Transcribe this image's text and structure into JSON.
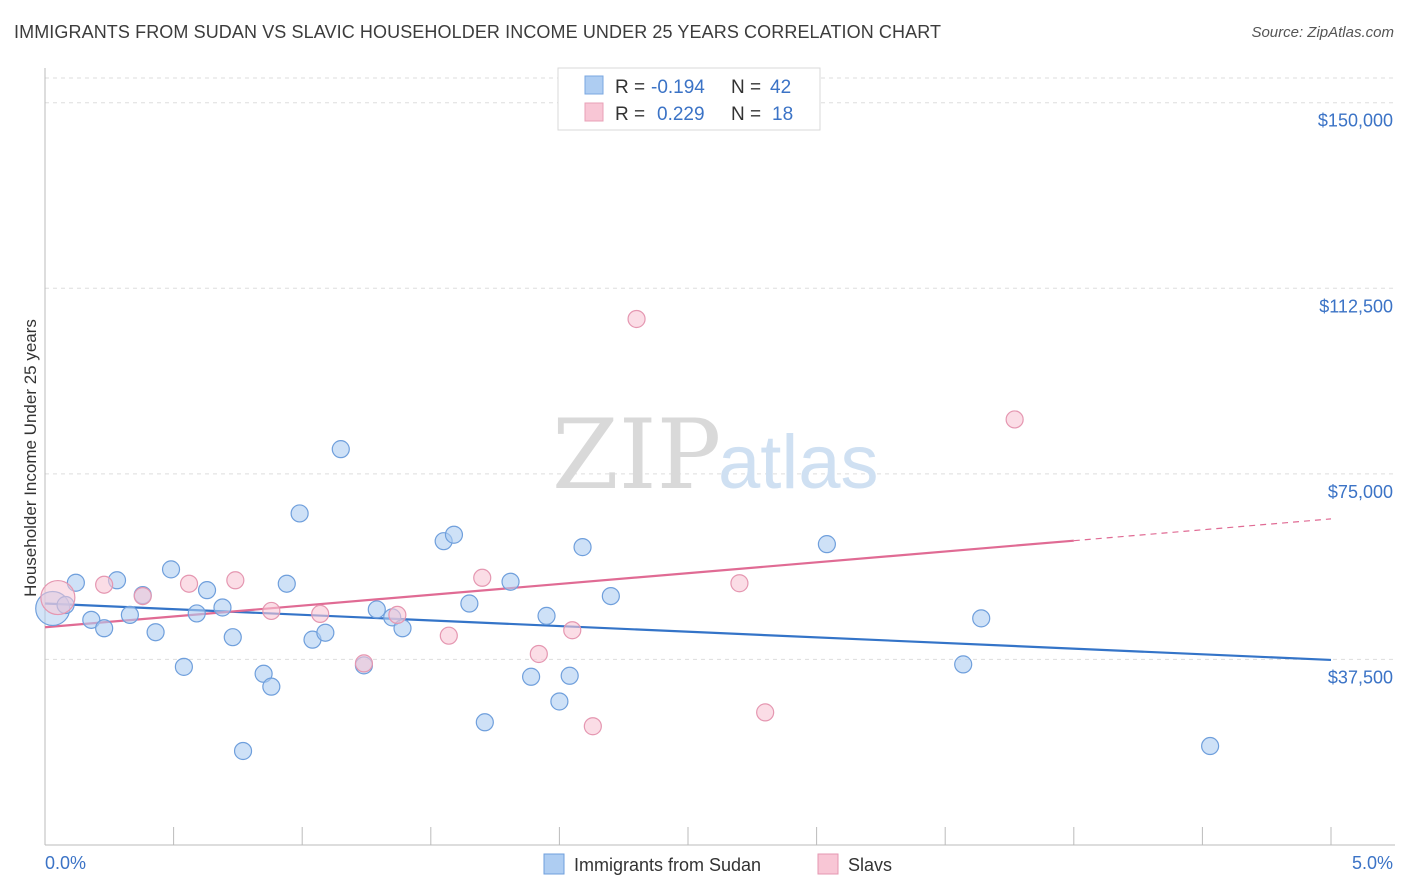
{
  "title": "IMMIGRANTS FROM SUDAN VS SLAVIC HOUSEHOLDER INCOME UNDER 25 YEARS CORRELATION CHART",
  "source": "Source: ZipAtlas.com",
  "watermark": {
    "zip": "ZIP",
    "atlas": "atlas"
  },
  "legend_top": [
    {
      "r_label": "R = ",
      "r_value": "-0.194",
      "n_label": "N = ",
      "n_value": "42",
      "color": "#aecdf2",
      "stroke": "#7aa7e0"
    },
    {
      "r_label": "R = ",
      "r_value": "0.229",
      "n_label": "N = ",
      "n_value": "18",
      "color": "#f8c6d5",
      "stroke": "#e8a0b7"
    }
  ],
  "chart_data": {
    "type": "scatter",
    "title": "IMMIGRANTS FROM SUDAN VS SLAVIC HOUSEHOLDER INCOME UNDER 25 YEARS CORRELATION CHART",
    "xlabel": "",
    "ylabel": "Householder Income Under 25 years",
    "xlim": [
      0,
      5
    ],
    "ylim": [
      0,
      155000
    ],
    "x_tick_labels": [
      "0.0%",
      "5.0%"
    ],
    "y_ticks": [
      37500,
      75000,
      112500,
      150000
    ],
    "y_tick_labels": [
      "$37,500",
      "$75,000",
      "$112,500",
      "$150,000"
    ],
    "grid": true,
    "legend_position": "bottom",
    "series": [
      {
        "name": "Immigrants from Sudan",
        "color": "#aecdf2",
        "stroke": "#6f9fdc",
        "line_color": "#3474c8",
        "trend": {
          "x0": 0,
          "y0": 48800,
          "x1": 5,
          "y1": 37400
        },
        "points": [
          {
            "x": 0.03,
            "y": 47800,
            "big": true
          },
          {
            "x": 0.08,
            "y": 48500
          },
          {
            "x": 0.12,
            "y": 53000
          },
          {
            "x": 0.18,
            "y": 45500
          },
          {
            "x": 0.23,
            "y": 43800
          },
          {
            "x": 0.28,
            "y": 53500
          },
          {
            "x": 0.33,
            "y": 46500
          },
          {
            "x": 0.38,
            "y": 50500
          },
          {
            "x": 0.43,
            "y": 43000
          },
          {
            "x": 0.49,
            "y": 55700
          },
          {
            "x": 0.54,
            "y": 36000
          },
          {
            "x": 0.59,
            "y": 46800
          },
          {
            "x": 0.63,
            "y": 51500
          },
          {
            "x": 0.69,
            "y": 48000
          },
          {
            "x": 0.73,
            "y": 42000
          },
          {
            "x": 0.77,
            "y": 19000
          },
          {
            "x": 0.85,
            "y": 34600
          },
          {
            "x": 0.88,
            "y": 32000
          },
          {
            "x": 0.94,
            "y": 52800
          },
          {
            "x": 0.99,
            "y": 67000
          },
          {
            "x": 1.04,
            "y": 41500
          },
          {
            "x": 1.09,
            "y": 42900
          },
          {
            "x": 1.15,
            "y": 80000
          },
          {
            "x": 1.24,
            "y": 36300
          },
          {
            "x": 1.29,
            "y": 47600
          },
          {
            "x": 1.35,
            "y": 46000
          },
          {
            "x": 1.39,
            "y": 43800
          },
          {
            "x": 1.55,
            "y": 61400
          },
          {
            "x": 1.59,
            "y": 62700
          },
          {
            "x": 1.65,
            "y": 48800
          },
          {
            "x": 1.71,
            "y": 24800
          },
          {
            "x": 1.81,
            "y": 53200
          },
          {
            "x": 1.89,
            "y": 34000
          },
          {
            "x": 1.95,
            "y": 46300
          },
          {
            "x": 2.0,
            "y": 29000
          },
          {
            "x": 2.04,
            "y": 34200
          },
          {
            "x": 2.09,
            "y": 60200
          },
          {
            "x": 2.2,
            "y": 50300
          },
          {
            "x": 3.04,
            "y": 60800
          },
          {
            "x": 3.57,
            "y": 36500
          },
          {
            "x": 3.64,
            "y": 45800
          },
          {
            "x": 4.53,
            "y": 20000
          }
        ]
      },
      {
        "name": "Slavs",
        "color": "#f8c6d5",
        "stroke": "#e597b1",
        "line_color": "#e06b94",
        "trend": {
          "x0": 0,
          "y0": 44000,
          "x1": 4.0,
          "y1": 61500
        },
        "trend_dashed": {
          "x0": 4.0,
          "y0": 61500,
          "x1": 5,
          "y1": 65900
        },
        "points": [
          {
            "x": 0.05,
            "y": 50000,
            "big": true
          },
          {
            "x": 0.23,
            "y": 52600
          },
          {
            "x": 0.38,
            "y": 50300
          },
          {
            "x": 0.56,
            "y": 52800
          },
          {
            "x": 0.74,
            "y": 53500
          },
          {
            "x": 0.88,
            "y": 47300
          },
          {
            "x": 1.07,
            "y": 46700
          },
          {
            "x": 1.24,
            "y": 36700
          },
          {
            "x": 1.37,
            "y": 46500
          },
          {
            "x": 1.57,
            "y": 42300
          },
          {
            "x": 1.7,
            "y": 54000
          },
          {
            "x": 1.92,
            "y": 38600
          },
          {
            "x": 2.05,
            "y": 43400
          },
          {
            "x": 2.13,
            "y": 24000
          },
          {
            "x": 2.3,
            "y": 106300
          },
          {
            "x": 2.7,
            "y": 52900
          },
          {
            "x": 2.8,
            "y": 26800
          },
          {
            "x": 3.77,
            "y": 86000
          }
        ]
      }
    ]
  }
}
